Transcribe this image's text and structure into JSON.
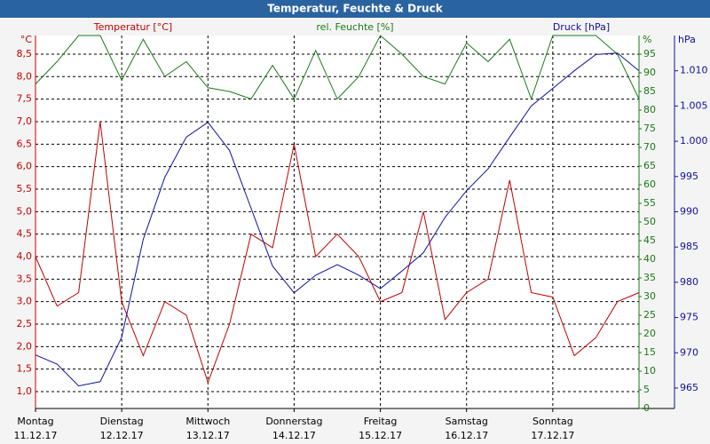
{
  "chart_data": {
    "type": "line",
    "title": "Temperatur, Feuchte & Druck",
    "x": [
      0,
      0.25,
      0.5,
      0.75,
      1,
      1.25,
      1.5,
      1.75,
      2,
      2.25,
      2.5,
      2.75,
      3,
      3.25,
      3.5,
      3.75,
      4,
      4.25,
      4.5,
      4.75,
      5,
      5.25,
      5.5,
      5.75,
      6,
      6.25,
      6.5,
      6.75,
      7
    ],
    "xlim": [
      0,
      7
    ],
    "xticks": [
      {
        "value": 0,
        "label": "Montag"
      },
      {
        "value": 1,
        "label": "Dienstag"
      },
      {
        "value": 2,
        "label": "Mittwoch"
      },
      {
        "value": 3,
        "label": "Donnerstag"
      },
      {
        "value": 4,
        "label": "Freitag"
      },
      {
        "value": 5,
        "label": "Samstag"
      },
      {
        "value": 6,
        "label": "Sonntag"
      }
    ],
    "xtick_dates": [
      "11.12.17",
      "12.12.17",
      "13.12.17",
      "14.12.17",
      "15.12.17",
      "16.12.17",
      "17.12.17"
    ],
    "y_unit": "°C",
    "y2_unit": "%",
    "y3_unit": "hPa",
    "ylim": [
      0.625,
      8.914
    ],
    "yticks": [
      {
        "value": 1.0,
        "label": "1,0"
      },
      {
        "value": 1.5,
        "label": "1,5"
      },
      {
        "value": 2.0,
        "label": "2,0"
      },
      {
        "value": 2.5,
        "label": "2,5"
      },
      {
        "value": 3.0,
        "label": "3,0"
      },
      {
        "value": 3.5,
        "label": "3,5"
      },
      {
        "value": 4.0,
        "label": "4,0"
      },
      {
        "value": 4.5,
        "label": "4,5"
      },
      {
        "value": 5.0,
        "label": "5,0"
      },
      {
        "value": 5.5,
        "label": "5,5"
      },
      {
        "value": 6.0,
        "label": "6,0"
      },
      {
        "value": 6.5,
        "label": "6,5"
      },
      {
        "value": 7.0,
        "label": "7,0"
      },
      {
        "value": 7.5,
        "label": "7,5"
      },
      {
        "value": 8.0,
        "label": "8,0"
      },
      {
        "value": 8.5,
        "label": "8,5"
      }
    ],
    "y2lim": [
      0,
      100
    ],
    "y2ticks": [
      0,
      5,
      10,
      15,
      20,
      25,
      30,
      35,
      40,
      45,
      50,
      55,
      60,
      65,
      70,
      75,
      80,
      85,
      90,
      95
    ],
    "y3lim": [
      962.1,
      1015.0
    ],
    "y3ticks": [
      965,
      970,
      975,
      980,
      985,
      990,
      995,
      {
        "value": 1000,
        "label": "1.000"
      },
      {
        "value": 1005,
        "label": "1.005"
      },
      {
        "value": 1010,
        "label": "1.010"
      }
    ],
    "grid": true,
    "series": [
      {
        "name": "Temperatur [°C]",
        "color": "#c00000",
        "axis": "y",
        "values": [
          4.0,
          2.9,
          3.2,
          7.0,
          3.0,
          1.8,
          3.0,
          2.7,
          1.2,
          2.5,
          4.5,
          4.2,
          6.5,
          4.0,
          4.5,
          4.0,
          3.0,
          3.2,
          5.0,
          2.6,
          3.2,
          3.5,
          5.7,
          3.2,
          3.1,
          1.8,
          2.2,
          3.0,
          3.2
        ]
      },
      {
        "name": "rel. Feuchte [%]",
        "color": "#1a7a1a",
        "axis": "y2",
        "values": [
          87,
          93,
          100,
          100,
          88,
          99,
          89,
          93,
          86,
          85,
          83,
          92,
          83,
          96,
          83,
          89,
          100,
          95,
          89,
          87,
          98,
          93,
          99,
          83,
          100,
          100,
          100,
          95,
          83
        ]
      },
      {
        "name": "Druck [hPa]",
        "color": "#1010a0",
        "axis": "y3",
        "values": [
          969.7,
          968.4,
          965.3,
          965.9,
          972.2,
          986.1,
          994.9,
          1000.6,
          1002.7,
          998.7,
          990.5,
          982.3,
          978.5,
          981.0,
          982.5,
          981.0,
          979.1,
          981.6,
          984.2,
          989.2,
          993.0,
          996.1,
          1000.6,
          1005.0,
          1007.5,
          1010.0,
          1012.3,
          1012.5,
          1010.0
        ]
      }
    ]
  }
}
